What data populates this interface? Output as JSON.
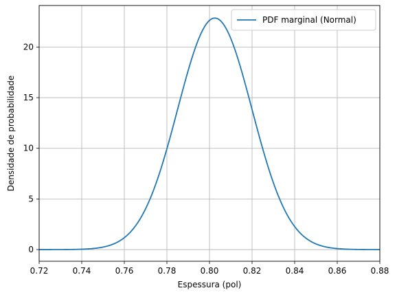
{
  "chart_data": {
    "type": "line",
    "title": "",
    "xlabel": "Espessura (pol)",
    "ylabel": "Densidade de probabilidade",
    "xlim": [
      0.72,
      0.88
    ],
    "ylim": [
      -1.15,
      24.1
    ],
    "x_ticks": [
      0.72,
      0.74,
      0.76,
      0.78,
      0.8,
      0.82,
      0.84,
      0.86,
      0.88
    ],
    "x_tick_labels": [
      "0.72",
      "0.74",
      "0.76",
      "0.78",
      "0.80",
      "0.82",
      "0.84",
      "0.86",
      "0.88"
    ],
    "y_ticks": [
      0,
      5,
      10,
      15,
      20
    ],
    "y_tick_labels": [
      "0",
      "5",
      "10",
      "15",
      "20"
    ],
    "grid": true,
    "legend_position": "top-right",
    "series": [
      {
        "name": "PDF marginal (Normal)",
        "color": "#1f77b4",
        "distribution": "normal",
        "mean": 0.8025,
        "std": 0.01745,
        "x": [
          0.72,
          0.725,
          0.73,
          0.735,
          0.74,
          0.745,
          0.75,
          0.755,
          0.76,
          0.765,
          0.77,
          0.775,
          0.78,
          0.785,
          0.79,
          0.795,
          0.8,
          0.8025,
          0.805,
          0.81,
          0.815,
          0.82,
          0.825,
          0.83,
          0.835,
          0.84,
          0.845,
          0.85,
          0.855,
          0.86,
          0.865,
          0.87,
          0.875,
          0.88
        ],
        "y": [
          0.0,
          0.0,
          0.0,
          0.0,
          0.04,
          0.09,
          0.25,
          0.61,
          1.2,
          2.4,
          4.3,
          6.9,
          10.1,
          14.3,
          18.3,
          21.8,
          22.6,
          22.9,
          22.6,
          21.2,
          18.1,
          14.3,
          10.1,
          6.6,
          4.1,
          2.4,
          1.2,
          0.61,
          0.25,
          0.09,
          0.04,
          0.0,
          0.0,
          0.0
        ]
      }
    ]
  }
}
